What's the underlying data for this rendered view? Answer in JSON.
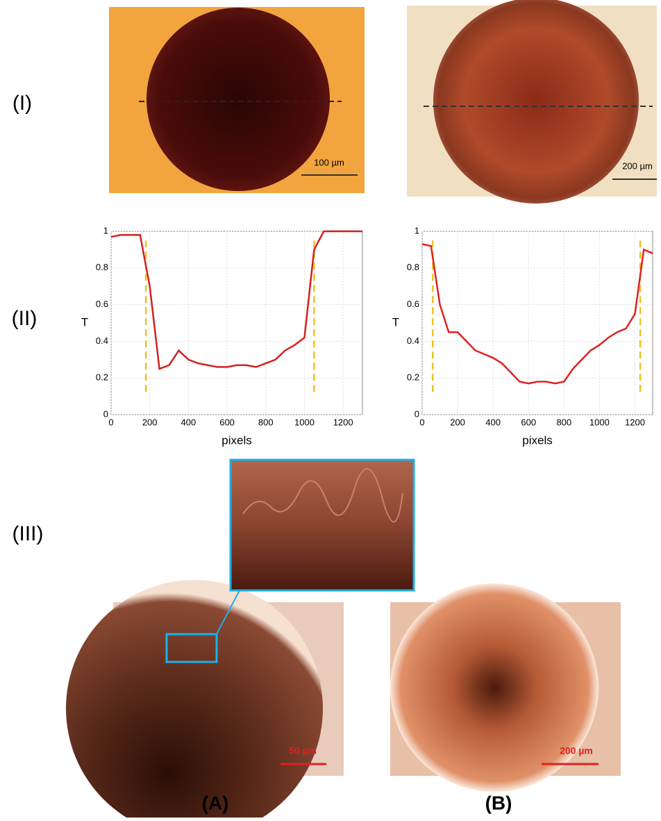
{
  "row_labels": [
    "(I)",
    "(II)",
    "(III)"
  ],
  "column_labels": [
    "(A)",
    "(B)"
  ],
  "scale_bars": [
    "100 µm",
    "200 µm",
    "50 µm",
    "200 µm"
  ],
  "chart_data": [
    {
      "type": "line",
      "x_label": "pixels",
      "y_label": "T",
      "xlim": [
        0,
        1300
      ],
      "xticks": [
        0,
        200,
        400,
        600,
        800,
        1000,
        1200
      ],
      "ylim": [
        0,
        1
      ],
      "yticks": [
        0,
        0.2,
        0.4,
        0.6,
        0.8,
        1
      ],
      "grid": true,
      "x": [
        0,
        50,
        100,
        150,
        200,
        250,
        300,
        350,
        400,
        450,
        500,
        550,
        600,
        650,
        700,
        750,
        800,
        850,
        900,
        950,
        1000,
        1050,
        1100,
        1150,
        1200,
        1250,
        1300
      ],
      "series": [
        {
          "color": "#d42020",
          "values": [
            0.97,
            0.98,
            0.98,
            0.98,
            0.7,
            0.25,
            0.27,
            0.35,
            0.3,
            0.28,
            0.27,
            0.26,
            0.26,
            0.27,
            0.27,
            0.26,
            0.28,
            0.3,
            0.35,
            0.38,
            0.42,
            0.9,
            1,
            1,
            1,
            1,
            1
          ]
        }
      ],
      "vlines": {
        "values": [
          180,
          1050
        ],
        "color": "#f0c020"
      }
    },
    {
      "type": "line",
      "x_label": "pixels",
      "y_label": "T",
      "xlim": [
        0,
        1300
      ],
      "xticks": [
        0,
        200,
        400,
        600,
        800,
        1000,
        1200
      ],
      "ylim": [
        0,
        1
      ],
      "yticks": [
        0,
        0.2,
        0.4,
        0.6,
        0.8,
        1
      ],
      "grid": true,
      "x": [
        0,
        50,
        100,
        150,
        200,
        250,
        300,
        350,
        400,
        450,
        500,
        550,
        600,
        650,
        700,
        750,
        800,
        850,
        900,
        950,
        1000,
        1050,
        1100,
        1150,
        1200,
        1250,
        1300
      ],
      "series": [
        {
          "color": "#e02020",
          "values": [
            0.93,
            0.92,
            0.6,
            0.45,
            0.45,
            0.4,
            0.35,
            0.33,
            0.31,
            0.28,
            0.23,
            0.18,
            0.17,
            0.18,
            0.18,
            0.17,
            0.18,
            0.25,
            0.3,
            0.35,
            0.38,
            0.42,
            0.45,
            0.47,
            0.55,
            0.9,
            0.88
          ]
        }
      ],
      "vlines": {
        "values": [
          60,
          1230
        ],
        "color": "#f0c020"
      }
    }
  ]
}
